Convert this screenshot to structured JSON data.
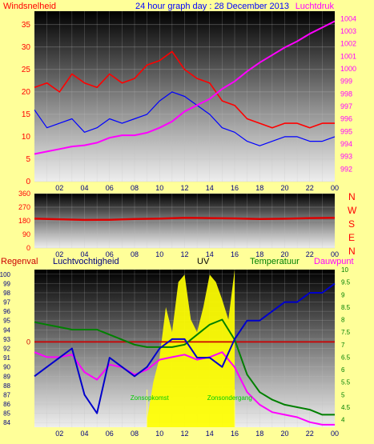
{
  "header": {
    "left_label": "Windsnelheid",
    "title": "24 hour graph day : 28 December 2013",
    "right_label": "Luchtdruk"
  },
  "compass_letters": [
    "N",
    "W",
    "S",
    "E",
    "N"
  ],
  "bottom_labels": {
    "regenval": "Regenval",
    "luchtvochtigheid": "Luchtvochtigheid",
    "uv": "UV",
    "temperatuur": "Temperatuur",
    "dauwpunt": "Dauwpunt"
  },
  "annotations": {
    "sunrise": "Zonsopkomst",
    "sunset": "Zonsondergang"
  },
  "x_ticks": [
    "02",
    "04",
    "06",
    "08",
    "10",
    "12",
    "14",
    "16",
    "18",
    "20",
    "22",
    "00"
  ],
  "colors": {
    "background": "#ffff99",
    "wind_gust": "#ff0000",
    "wind_avg": "#0000ff",
    "pressure": "#ff00ff",
    "direction": "#dd0000",
    "humidity": "#0000cc",
    "temperature": "#008000",
    "dewpoint": "#ff00ff",
    "uv_fill": "#ffff00",
    "rain": "#cc0000",
    "grid": "#c0c0c0"
  },
  "chart_data": [
    {
      "type": "line",
      "title": "24 hour graph day : 28 December 2013",
      "ylabel": "Windsnelheid",
      "y2label": "Luchtdruk",
      "x_hours": [
        0,
        1,
        2,
        3,
        4,
        5,
        6,
        7,
        8,
        9,
        10,
        11,
        12,
        13,
        14,
        15,
        16,
        17,
        18,
        19,
        20,
        21,
        22,
        23,
        24
      ],
      "ylim": [
        0,
        38
      ],
      "yticks": [
        0,
        5,
        10,
        15,
        20,
        25,
        30,
        35
      ],
      "y2lim": [
        991,
        1004.6
      ],
      "y2ticks": [
        992,
        993,
        994,
        995,
        996,
        997,
        998,
        999,
        1000,
        1001,
        1002,
        1003,
        1004
      ],
      "y2ticklabels": [
        "992",
        "993",
        "994",
        "995",
        "996",
        "997",
        "998",
        "999",
        "1000",
        "1001",
        "1002",
        "1003",
        "1004"
      ],
      "grid": true,
      "series": [
        {
          "axis": "left",
          "values": [
            21,
            22,
            20,
            24,
            22,
            21,
            24,
            22,
            23,
            26,
            27,
            29,
            25,
            23,
            22,
            18,
            17,
            14,
            13,
            12,
            13,
            13,
            12,
            13,
            13
          ]
        },
        {
          "axis": "left",
          "values": [
            16,
            12,
            13,
            14,
            11,
            12,
            14,
            13,
            14,
            15,
            18,
            20,
            19,
            17,
            15,
            12,
            11,
            9,
            8,
            9,
            10,
            10,
            9,
            9,
            10
          ]
        },
        {
          "axis": "right",
          "values": [
            993.2,
            993.4,
            993.6,
            993.8,
            993.9,
            994.1,
            994.5,
            994.7,
            994.7,
            994.9,
            995.3,
            995.8,
            996.6,
            997.1,
            997.6,
            998.4,
            999.0,
            999.8,
            1000.5,
            1001.1,
            1001.7,
            1002.2,
            1002.8,
            1003.3,
            1003.8
          ]
        }
      ]
    },
    {
      "type": "line",
      "ylim": [
        0,
        360
      ],
      "yticks": [
        0,
        90,
        180,
        270,
        360
      ],
      "x_hours": [
        0,
        2,
        4,
        6,
        8,
        10,
        12,
        14,
        16,
        18,
        20,
        22,
        24
      ],
      "grid": true,
      "series": [
        {
          "values": [
            195,
            190,
            186,
            187,
            192,
            195,
            200,
            198,
            196,
            192,
            194,
            198,
            200
          ]
        }
      ]
    },
    {
      "type": "line",
      "x_hours": [
        0,
        1,
        2,
        3,
        4,
        5,
        6,
        7,
        8,
        9,
        10,
        11,
        12,
        13,
        14,
        15,
        16,
        17,
        18,
        19,
        20,
        21,
        22,
        23,
        24
      ],
      "y_left_lim": [
        83.5,
        100.5
      ],
      "y_left_ticks": [
        84,
        85,
        86,
        87,
        88,
        89,
        90,
        91,
        92,
        93,
        94,
        95,
        96,
        97,
        98,
        99,
        100
      ],
      "y_right_lim": [
        3.7,
        10
      ],
      "y_right_ticks": [
        4,
        4.5,
        5,
        5.5,
        6,
        6.5,
        7,
        7.5,
        8,
        8.5,
        9,
        9.5,
        10
      ],
      "y_right_ticklabels": [
        "4",
        "4.5",
        "5",
        "5.5",
        "6",
        "6.5",
        "7",
        "7.5",
        "8",
        "8.5",
        "9",
        "9.5",
        "10"
      ],
      "rain_scale_ticks": [
        0
      ],
      "rain_scale_ticklabels": [
        "0"
      ],
      "grid": true,
      "series": [
        {
          "axis": "left",
          "values": [
            89,
            90,
            91,
            92,
            87,
            85,
            91,
            90,
            89,
            90,
            92,
            93,
            93,
            91,
            91,
            90,
            93,
            95,
            95,
            96,
            97,
            97,
            98,
            98,
            99
          ]
        },
        {
          "axis": "right",
          "values": [
            7.9,
            7.8,
            7.7,
            7.6,
            7.6,
            7.6,
            7.4,
            7.2,
            7.0,
            6.9,
            6.9,
            6.9,
            7.0,
            7.4,
            7.8,
            8.0,
            7.2,
            5.8,
            5.1,
            4.8,
            4.6,
            4.5,
            4.4,
            4.2,
            4.2
          ]
        },
        {
          "axis": "right",
          "values": [
            6.7,
            6.5,
            6.5,
            6.6,
            5.9,
            5.6,
            6.2,
            6.1,
            5.8,
            6.0,
            6.4,
            6.5,
            6.6,
            6.4,
            6.5,
            6.7,
            6.1,
            5.1,
            4.6,
            4.3,
            4.2,
            4.1,
            3.9,
            3.8,
            3.8
          ]
        },
        {
          "values": [
            0,
            0,
            0,
            0,
            0,
            0,
            0,
            0,
            0,
            0,
            0,
            0,
            0,
            0,
            0,
            0,
            0,
            0,
            0,
            0,
            0,
            0,
            0,
            0,
            0
          ]
        }
      ],
      "uv_area": {
        "x_hours": [
          9,
          9.5,
          10,
          10.5,
          11,
          11.5,
          12,
          12.5,
          13,
          13.5,
          14,
          14.5,
          15,
          15.5,
          16
        ],
        "values": [
          4.0,
          5.5,
          6.5,
          8.5,
          7.5,
          9.5,
          9.8,
          8.0,
          7.5,
          8.5,
          9.8,
          9.5,
          8.8,
          8.0,
          10.0
        ]
      }
    }
  ]
}
